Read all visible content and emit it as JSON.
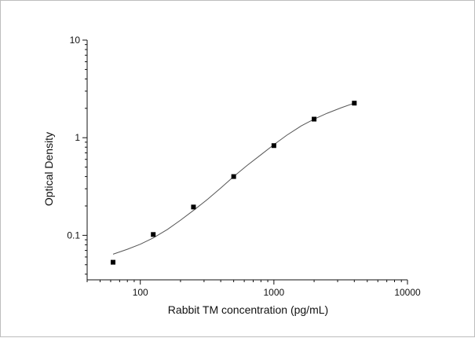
{
  "chart_data": {
    "type": "scatter",
    "title": "",
    "xlabel": "Rabbit TM concentration (pg/mL)",
    "ylabel": "Optical Density",
    "x_scale": "log",
    "y_scale": "log",
    "xlim": [
      40,
      10000
    ],
    "ylim": [
      0.035,
      10
    ],
    "x_ticks": [
      {
        "value": 100,
        "label": "100"
      },
      {
        "value": 1000,
        "label": "1000"
      },
      {
        "value": 10000,
        "label": "10000"
      }
    ],
    "y_ticks": [
      {
        "value": 0.1,
        "label": "0.1"
      },
      {
        "value": 1,
        "label": "1"
      },
      {
        "value": 10,
        "label": "10"
      }
    ],
    "grid": false,
    "legend": "none",
    "points": [
      {
        "x": 62.5,
        "y": 0.053
      },
      {
        "x": 125,
        "y": 0.102
      },
      {
        "x": 250,
        "y": 0.195
      },
      {
        "x": 500,
        "y": 0.4
      },
      {
        "x": 1000,
        "y": 0.83
      },
      {
        "x": 2000,
        "y": 1.55
      },
      {
        "x": 4000,
        "y": 2.26
      }
    ],
    "fit_curve": [
      {
        "x": 62.5,
        "y": 0.064
      },
      {
        "x": 80,
        "y": 0.072
      },
      {
        "x": 100,
        "y": 0.081
      },
      {
        "x": 125,
        "y": 0.094
      },
      {
        "x": 160,
        "y": 0.115
      },
      {
        "x": 200,
        "y": 0.143
      },
      {
        "x": 250,
        "y": 0.18
      },
      {
        "x": 320,
        "y": 0.235
      },
      {
        "x": 400,
        "y": 0.305
      },
      {
        "x": 500,
        "y": 0.4
      },
      {
        "x": 630,
        "y": 0.52
      },
      {
        "x": 800,
        "y": 0.67
      },
      {
        "x": 1000,
        "y": 0.85
      },
      {
        "x": 1250,
        "y": 1.06
      },
      {
        "x": 1600,
        "y": 1.32
      },
      {
        "x": 2000,
        "y": 1.55
      },
      {
        "x": 2500,
        "y": 1.78
      },
      {
        "x": 3200,
        "y": 2.03
      },
      {
        "x": 4000,
        "y": 2.26
      }
    ],
    "colors": {
      "axis": "#111111",
      "points": "#000000",
      "curve": "#555555"
    }
  }
}
